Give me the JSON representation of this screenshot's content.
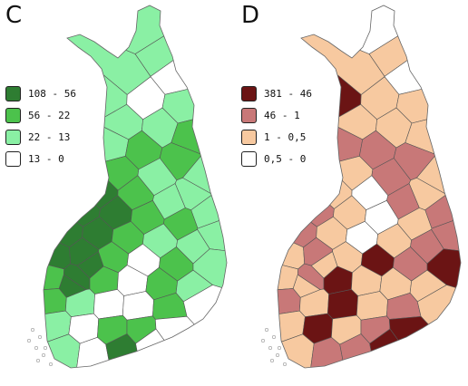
{
  "panels": [
    {
      "id": "C",
      "letter": "C",
      "legend": [
        {
          "label": "108 - 56",
          "color": "#2e7d32"
        },
        {
          "label": "56 - 22",
          "color": "#4cc24c"
        },
        {
          "label": "22 - 13",
          "color": "#8af0a4"
        },
        {
          "label": "13 - 0",
          "color": "#ffffff"
        }
      ]
    },
    {
      "id": "D",
      "letter": "D",
      "legend": [
        {
          "label": "381 - 46",
          "color": "#6b1414"
        },
        {
          "label": "46 - 1",
          "color": "#c87878"
        },
        {
          "label": "1 - 0,5",
          "color": "#f7c9a0"
        },
        {
          "label": "0,5 - 0",
          "color": "#ffffff"
        }
      ]
    }
  ]
}
